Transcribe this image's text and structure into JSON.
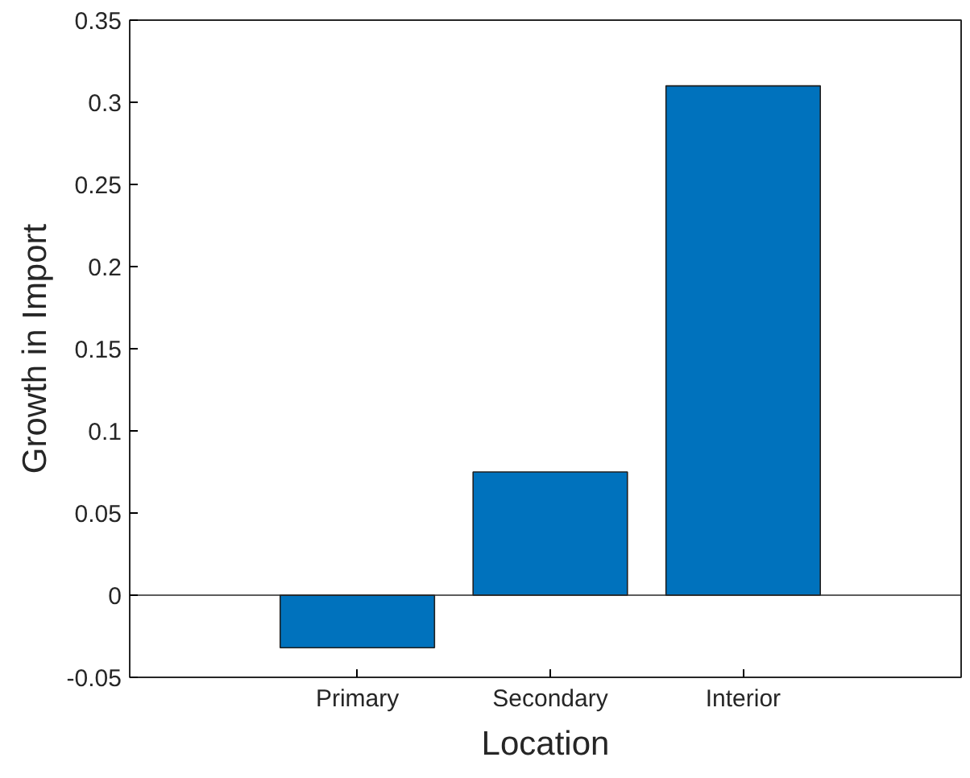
{
  "chart_data": {
    "type": "bar",
    "xlabel": "Location",
    "ylabel": "Growth in Import",
    "categories": [
      "Primary",
      "Secondary",
      "Interior"
    ],
    "values": [
      -0.032,
      0.075,
      0.31
    ],
    "color": "#0072bd",
    "ylim": [
      -0.05,
      0.35
    ],
    "yticks": [
      -0.05,
      0,
      0.05,
      0.1,
      0.15,
      0.2,
      0.25,
      0.3,
      0.35
    ],
    "ref_lines": [
      {
        "axis": "y",
        "value": 0,
        "color": "#262626"
      }
    ]
  }
}
